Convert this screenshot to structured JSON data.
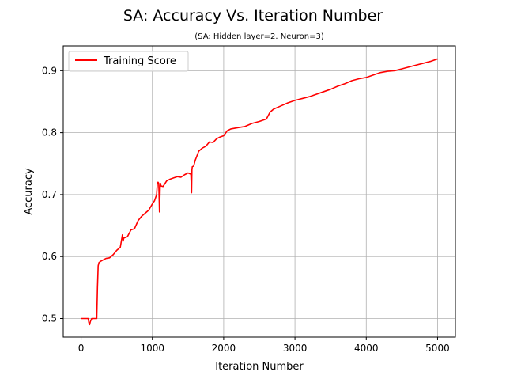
{
  "chart_data": {
    "type": "line",
    "title": "SA: Accuracy Vs. Iteration Number",
    "subtitle": "(SA: Hidden layer=2. Neuron=3)",
    "xlabel": "Iteration Number",
    "ylabel": "Accuracy",
    "xlim": [
      -250,
      5250
    ],
    "ylim": [
      0.47,
      0.94
    ],
    "xticks": [
      0,
      1000,
      2000,
      3000,
      4000,
      5000
    ],
    "xtick_labels": [
      "0",
      "1000",
      "2000",
      "3000",
      "4000",
      "5000"
    ],
    "yticks": [
      0.5,
      0.6,
      0.7,
      0.8,
      0.9
    ],
    "ytick_labels": [
      "0.5",
      "0.6",
      "0.7",
      "0.8",
      "0.9"
    ],
    "grid": true,
    "legend": {
      "position": "top-left",
      "entries": [
        "Training Score"
      ]
    },
    "series": [
      {
        "name": "Training Score",
        "color": "#ff0000",
        "x": [
          0,
          100,
          110,
          120,
          130,
          150,
          200,
          220,
          230,
          240,
          250,
          270,
          300,
          350,
          400,
          450,
          500,
          550,
          580,
          590,
          600,
          650,
          700,
          750,
          800,
          850,
          900,
          950,
          1000,
          1030,
          1060,
          1070,
          1080,
          1090,
          1100,
          1110,
          1115,
          1120,
          1150,
          1200,
          1250,
          1300,
          1350,
          1400,
          1450,
          1500,
          1540,
          1550,
          1555,
          1560,
          1580,
          1600,
          1650,
          1700,
          1750,
          1800,
          1850,
          1900,
          1950,
          2000,
          2050,
          2100,
          2200,
          2300,
          2400,
          2500,
          2600,
          2650,
          2700,
          2800,
          2900,
          3000,
          3100,
          3200,
          3300,
          3400,
          3500,
          3600,
          3700,
          3800,
          3900,
          4000,
          4100,
          4200,
          4300,
          4400,
          4500,
          4600,
          4700,
          4800,
          4900,
          5000
        ],
        "y": [
          0.5,
          0.5,
          0.493,
          0.49,
          0.495,
          0.5,
          0.5,
          0.5,
          0.55,
          0.585,
          0.59,
          0.592,
          0.594,
          0.597,
          0.598,
          0.603,
          0.61,
          0.615,
          0.635,
          0.625,
          0.63,
          0.632,
          0.643,
          0.645,
          0.658,
          0.665,
          0.67,
          0.675,
          0.685,
          0.69,
          0.7,
          0.718,
          0.72,
          0.718,
          0.672,
          0.715,
          0.718,
          0.714,
          0.713,
          0.722,
          0.725,
          0.727,
          0.729,
          0.728,
          0.732,
          0.735,
          0.733,
          0.703,
          0.74,
          0.745,
          0.746,
          0.755,
          0.77,
          0.775,
          0.778,
          0.785,
          0.784,
          0.79,
          0.793,
          0.795,
          0.803,
          0.806,
          0.808,
          0.81,
          0.815,
          0.818,
          0.822,
          0.833,
          0.838,
          0.843,
          0.848,
          0.852,
          0.855,
          0.858,
          0.862,
          0.866,
          0.87,
          0.875,
          0.879,
          0.884,
          0.887,
          0.889,
          0.893,
          0.897,
          0.899,
          0.9,
          0.903,
          0.906,
          0.909,
          0.912,
          0.915,
          0.919
        ]
      }
    ]
  }
}
